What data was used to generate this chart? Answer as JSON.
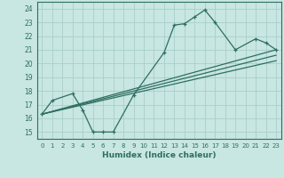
{
  "xlabel": "Humidex (Indice chaleur)",
  "xlim": [
    -0.5,
    23.5
  ],
  "ylim": [
    14.5,
    24.5
  ],
  "yticks": [
    15,
    16,
    17,
    18,
    19,
    20,
    21,
    22,
    23,
    24
  ],
  "xticks": [
    0,
    1,
    2,
    3,
    4,
    5,
    6,
    7,
    8,
    9,
    10,
    11,
    12,
    13,
    14,
    15,
    16,
    17,
    18,
    19,
    20,
    21,
    22,
    23
  ],
  "bg_color": "#c8e6e2",
  "grid_color": "#a8cfc9",
  "line_color": "#2e6e62",
  "curve1_x": [
    0,
    1,
    3,
    4,
    5,
    6,
    7,
    9,
    12,
    13,
    14,
    15,
    16,
    17,
    19,
    21,
    22,
    23
  ],
  "curve1_y": [
    16.3,
    17.3,
    17.8,
    16.6,
    15.0,
    15.0,
    15.0,
    17.7,
    20.8,
    22.8,
    22.9,
    23.4,
    23.9,
    23.0,
    21.0,
    21.8,
    21.5,
    21.0
  ],
  "curve2_x": [
    0,
    23
  ],
  "curve2_y": [
    16.3,
    21.0
  ],
  "curve3_x": [
    0,
    23
  ],
  "curve3_y": [
    16.3,
    20.6
  ],
  "curve4_x": [
    0,
    23
  ],
  "curve4_y": [
    16.3,
    20.2
  ]
}
